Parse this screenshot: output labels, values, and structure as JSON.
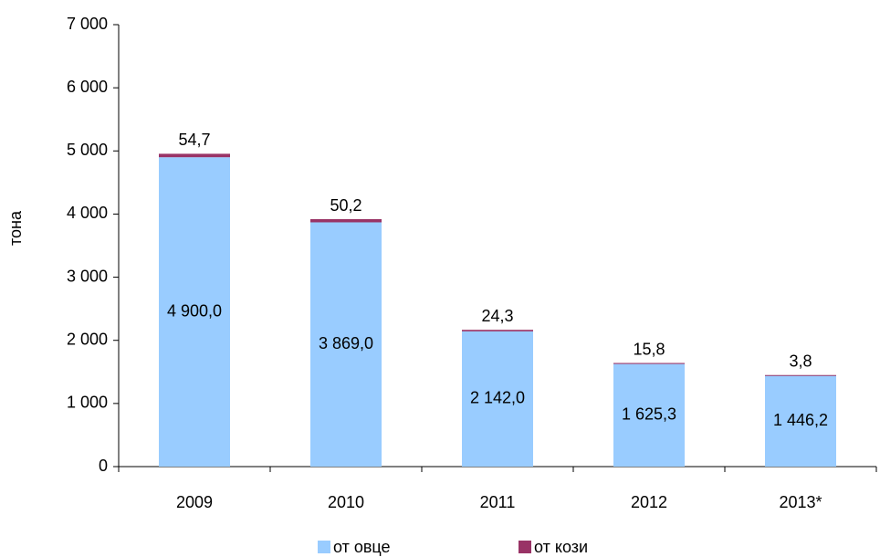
{
  "chart_data": {
    "type": "stacked_bar",
    "y_label": "тона",
    "categories": [
      "2009",
      "2010",
      "2011",
      "2012",
      "2013*"
    ],
    "series": [
      {
        "name": "от овце",
        "color": "#99ccff",
        "values": [
          4900.0,
          3869.0,
          2142.0,
          1625.3,
          1446.2
        ],
        "value_labels": [
          "4 900,0",
          "3 869,0",
          "2 142,0",
          "1 625,3",
          "1 446,2"
        ]
      },
      {
        "name": "от кози",
        "color": "#993366",
        "values": [
          54.7,
          50.2,
          24.3,
          15.8,
          3.8
        ],
        "value_labels": [
          "54,7",
          "50,2",
          "24,3",
          "15,8",
          "3,8"
        ]
      }
    ],
    "ylim": [
      0,
      7000
    ],
    "yticks": [
      0,
      {
        "value": 1000,
        "label": "1 000"
      },
      {
        "value": 2000,
        "label": "2 000"
      },
      {
        "value": 3000,
        "label": "3 000"
      },
      {
        "value": 4000,
        "label": "4 000"
      },
      {
        "value": 5000,
        "label": "5 000"
      },
      {
        "value": 6000,
        "label": "6 000"
      },
      {
        "value": 7000,
        "label": "7 000"
      }
    ]
  }
}
